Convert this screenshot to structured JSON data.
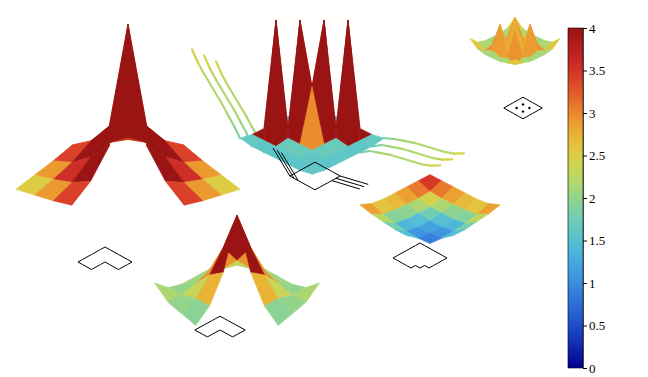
{
  "chart_data": {
    "type": "surface",
    "colorbar_range": [
      0,
      4
    ],
    "colorbar_ticks": [
      0,
      0.5,
      1,
      1.5,
      2,
      2.5,
      3,
      3.5,
      4
    ],
    "panels": [
      {
        "grid": [
          [
            2.2,
            2.5,
            2.8,
            3.2,
            2.8,
            2.5,
            2.2
          ],
          [
            2.5,
            2.9,
            3.4,
            4.2,
            3.4,
            2.9,
            2.5
          ],
          [
            2.8,
            3.4,
            4.5,
            6.0,
            4.5,
            3.4,
            2.8
          ],
          [
            3.2,
            4.2,
            6.0,
            14,
            6.0,
            4.2,
            3.2
          ],
          [
            2.8,
            3.4,
            4.5,
            6.0,
            null,
            null,
            null
          ],
          [
            2.5,
            2.9,
            3.4,
            4.2,
            null,
            null,
            null
          ],
          [
            2.2,
            2.5,
            2.8,
            3.2,
            null,
            null,
            null
          ]
        ]
      },
      {
        "grid": [
          [
            2.6,
            2.0,
            1.8,
            1.8,
            1.8,
            2.0,
            2.6
          ],
          [
            2.0,
            2.0,
            2.2,
            2.5,
            2.2,
            2.0,
            2.0
          ],
          [
            1.8,
            2.2,
            3.0,
            4.0,
            3.0,
            2.2,
            1.8
          ],
          [
            1.8,
            2.5,
            4.0,
            6.0,
            3.5,
            2.2,
            1.6
          ],
          [
            1.8,
            2.2,
            3.0,
            3.5,
            null,
            null,
            null
          ],
          [
            2.0,
            2.0,
            2.2,
            2.2,
            null,
            null,
            null
          ],
          [
            2.6,
            2.0,
            1.8,
            1.6,
            null,
            null,
            null
          ]
        ]
      },
      {
        "grid": [
          [
            1.8,
            1.6,
            1.6,
            1.6,
            1.6,
            1.6,
            1.8
          ],
          [
            1.6,
            1.5,
            1.5,
            1.6,
            12,
            1.6,
            1.6
          ],
          [
            1.6,
            1.5,
            1.6,
            12,
            1.8,
            1.6,
            1.6
          ],
          [
            1.6,
            1.6,
            12,
            6.5,
            1.8,
            1.6,
            1.6
          ],
          [
            1.6,
            12,
            1.8,
            1.8,
            1.8,
            1.6,
            1.6
          ],
          [
            1.6,
            1.6,
            1.6,
            1.6,
            1.6,
            1.5,
            1.6
          ],
          [
            1.8,
            1.6,
            1.6,
            1.6,
            1.6,
            1.6,
            1.8
          ]
        ],
        "arms": [
          [
            2.0,
            2.1,
            2.2,
            2.2,
            2.2,
            2.2,
            2.3,
            2.6
          ],
          [
            2.0,
            2.1,
            2.2,
            2.2,
            2.2,
            2.2,
            2.3,
            2.6
          ],
          [
            2.0,
            2.1,
            2.2,
            2.2,
            2.2,
            2.2,
            2.3,
            2.6
          ],
          [
            2.0,
            2.1,
            2.2,
            2.2,
            2.2,
            2.2,
            2.3,
            2.6
          ],
          [
            2.0,
            2.1,
            2.2,
            2.2,
            2.2,
            2.2,
            2.3,
            2.6
          ],
          [
            2.0,
            2.1,
            2.2,
            2.2,
            2.2,
            2.2,
            2.3,
            2.6
          ]
        ]
      },
      {
        "grid": [
          [
            3.8,
            3.6,
            3.4,
            3.2,
            3.0,
            3.0,
            3.4
          ],
          [
            3.6,
            2.8,
            2.5,
            2.3,
            2.2,
            2.2,
            2.8
          ],
          [
            3.4,
            2.5,
            2.0,
            1.8,
            1.6,
            1.6,
            2.4
          ],
          [
            3.2,
            2.3,
            1.8,
            1.4,
            1.2,
            1.2,
            2.0
          ],
          [
            3.0,
            2.2,
            1.6,
            1.2,
            1.0,
            0.9,
            1.8
          ],
          [
            3.0,
            2.2,
            1.6,
            1.2,
            0.9,
            0.8,
            null
          ],
          [
            3.4,
            2.8,
            2.4,
            2.0,
            1.8,
            null,
            null
          ]
        ]
      },
      {
        "grid": [
          [
            3.5,
            2.5,
            2.2,
            2.2,
            2.2,
            2.5,
            3.5
          ],
          [
            2.5,
            1.8,
            2.2,
            1.8,
            2.2,
            1.8,
            2.5
          ],
          [
            2.2,
            2.2,
            5.5,
            2.0,
            5.5,
            2.2,
            2.2
          ],
          [
            2.2,
            1.8,
            2.0,
            1.6,
            2.0,
            1.8,
            2.2
          ],
          [
            2.2,
            2.2,
            5.5,
            2.0,
            5.5,
            2.2,
            2.2
          ],
          [
            2.5,
            1.8,
            2.2,
            1.8,
            2.2,
            1.8,
            2.5
          ],
          [
            3.5,
            2.5,
            2.2,
            2.2,
            2.2,
            2.5,
            3.5
          ]
        ]
      }
    ]
  }
}
